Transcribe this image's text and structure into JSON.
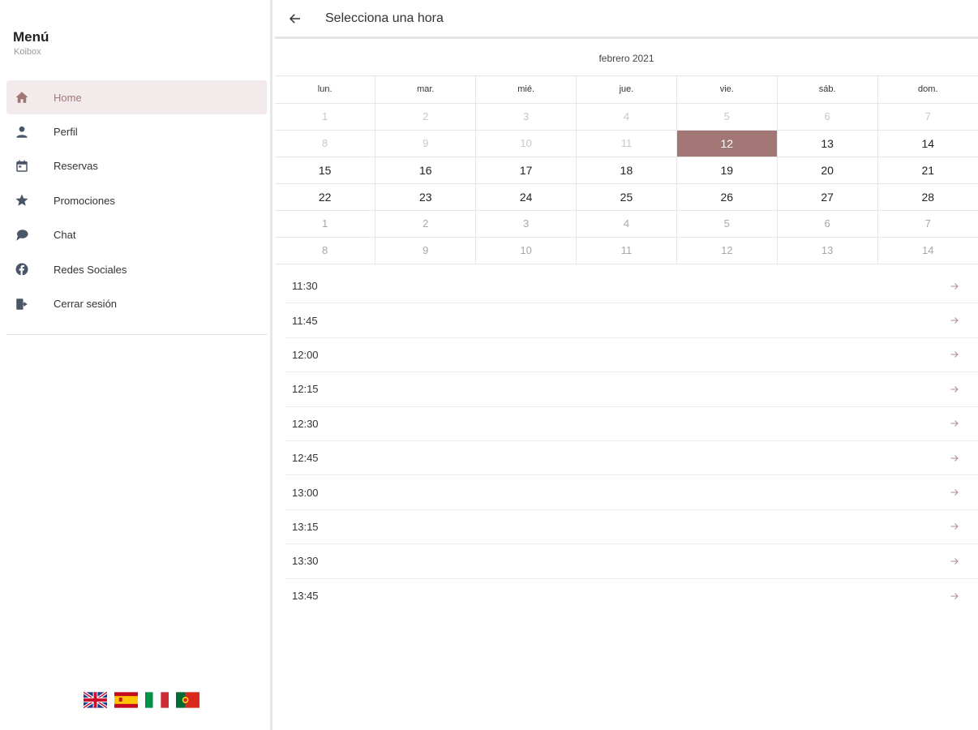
{
  "sidebar": {
    "title": "Menú",
    "subtitle": "Koibox",
    "items": [
      {
        "label": "Home",
        "icon": "home-icon"
      },
      {
        "label": "Perfil",
        "icon": "person-icon"
      },
      {
        "label": "Reservas",
        "icon": "calendar-icon"
      },
      {
        "label": "Promociones",
        "icon": "star-icon"
      },
      {
        "label": "Chat",
        "icon": "chat-icon"
      },
      {
        "label": "Redes Sociales",
        "icon": "facebook-icon"
      },
      {
        "label": "Cerrar sesión",
        "icon": "logout-icon"
      }
    ],
    "flags": [
      "uk-flag-icon",
      "spain-flag-icon",
      "italy-flag-icon",
      "portugal-flag-icon"
    ]
  },
  "header": {
    "title": "Selecciona una hora"
  },
  "calendar": {
    "month": "febrero 2021",
    "weekdays": [
      "lun.",
      "mar.",
      "mié.",
      "jue.",
      "vie.",
      "sáb.",
      "dom."
    ],
    "weeks": [
      [
        "1",
        "2",
        "3",
        "4",
        "5",
        "6",
        "7"
      ],
      [
        "8",
        "9",
        "10",
        "11",
        "12",
        "13",
        "14"
      ],
      [
        "15",
        "16",
        "17",
        "18",
        "19",
        "20",
        "21"
      ],
      [
        "22",
        "23",
        "24",
        "25",
        "26",
        "27",
        "28"
      ],
      [
        "1",
        "2",
        "3",
        "4",
        "5",
        "6",
        "7"
      ],
      [
        "8",
        "9",
        "10",
        "11",
        "12",
        "13",
        "14"
      ]
    ],
    "selected": "12"
  },
  "times": [
    "11:30",
    "11:45",
    "12:00",
    "12:15",
    "12:30",
    "12:45",
    "13:00",
    "13:15",
    "13:30",
    "13:45"
  ],
  "colors": {
    "accent": "#a37676",
    "active_bg": "#f3ebeb",
    "icon": "#4a5568",
    "arrow": "#b08a8a"
  }
}
